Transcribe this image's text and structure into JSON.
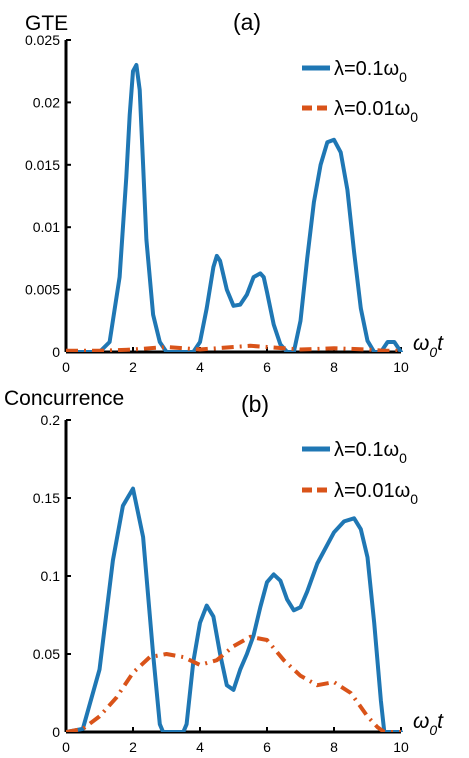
{
  "chart_data": [
    {
      "type": "line",
      "panel_label": "(a)",
      "ylabel": "GTE",
      "xlabel": "ω₀t",
      "xlim": [
        0,
        10
      ],
      "ylim": [
        0,
        0.025
      ],
      "xticks": [
        "0",
        "2",
        "4",
        "6",
        "8",
        "10"
      ],
      "yticks": [
        "0",
        "0.005",
        "0.01",
        "0.015",
        "0.02",
        "0.025"
      ],
      "legend_position": "top-right",
      "series": [
        {
          "name": "λ=0.1ω₀",
          "color": "#1f77b4",
          "style": "solid",
          "x": [
            0,
            1.0,
            1.3,
            1.6,
            1.8,
            1.9,
            2.0,
            2.1,
            2.2,
            2.3,
            2.4,
            2.6,
            2.8,
            3.0,
            3.5,
            3.8,
            4.0,
            4.2,
            4.4,
            4.5,
            4.6,
            4.8,
            5.0,
            5.2,
            5.4,
            5.6,
            5.8,
            5.9,
            6.0,
            6.2,
            6.4,
            6.6,
            6.8,
            7.0,
            7.2,
            7.4,
            7.6,
            7.8,
            8.0,
            8.2,
            8.4,
            8.6,
            8.8,
            9.0,
            9.2,
            9.4,
            9.6,
            9.8,
            10.0
          ],
          "y": [
            0,
            0,
            0.0008,
            0.006,
            0.014,
            0.019,
            0.0225,
            0.023,
            0.021,
            0.015,
            0.009,
            0.003,
            0.0008,
            0,
            0,
            0,
            0.0008,
            0.0035,
            0.0068,
            0.0077,
            0.0073,
            0.005,
            0.0037,
            0.0038,
            0.0046,
            0.006,
            0.0063,
            0.006,
            0.0048,
            0.0022,
            0.0006,
            0,
            0,
            0.0025,
            0.0075,
            0.012,
            0.015,
            0.0168,
            0.017,
            0.016,
            0.013,
            0.008,
            0.0035,
            0.0009,
            0,
            0,
            0.0008,
            0.0008,
            0
          ]
        },
        {
          "name": "λ=0.01ω₀",
          "color": "#d95319",
          "style": "dash-dot",
          "x": [
            0,
            1.0,
            2.0,
            3.0,
            4.0,
            5.0,
            5.5,
            6.0,
            7.0,
            8.0,
            9.0,
            9.5,
            10.0
          ],
          "y": [
            0.0001,
            0.0001,
            0.0002,
            0.0004,
            0.0002,
            0.0004,
            0.0005,
            0.0004,
            0.0002,
            0.0003,
            0.0002,
            0.0001,
            0.0001
          ]
        }
      ]
    },
    {
      "type": "line",
      "panel_label": "(b)",
      "ylabel": "Concurrence",
      "xlabel": "ω₀t",
      "xlim": [
        0,
        10
      ],
      "ylim": [
        0,
        0.2
      ],
      "xticks": [
        "0",
        "2",
        "4",
        "6",
        "8",
        "10"
      ],
      "yticks": [
        "0",
        "0.05",
        "0.1",
        "0.15",
        "0.2"
      ],
      "legend_position": "top-right",
      "series": [
        {
          "name": "λ=0.1ω₀",
          "color": "#1f77b4",
          "style": "solid",
          "x": [
            0,
            0.5,
            1.0,
            1.4,
            1.7,
            2.0,
            2.3,
            2.6,
            2.8,
            2.9,
            3.5,
            3.6,
            3.8,
            4.0,
            4.2,
            4.4,
            4.6,
            4.8,
            5.0,
            5.2,
            5.4,
            5.6,
            5.8,
            6.0,
            6.2,
            6.4,
            6.6,
            6.8,
            7.0,
            7.2,
            7.5,
            7.8,
            8.0,
            8.3,
            8.6,
            8.8,
            9.0,
            9.2,
            9.4,
            9.5,
            10.0
          ],
          "y": [
            0,
            0.002,
            0.04,
            0.11,
            0.145,
            0.156,
            0.125,
            0.05,
            0.005,
            0,
            0,
            0.005,
            0.045,
            0.07,
            0.081,
            0.074,
            0.05,
            0.03,
            0.027,
            0.04,
            0.05,
            0.062,
            0.08,
            0.096,
            0.101,
            0.097,
            0.085,
            0.078,
            0.08,
            0.09,
            0.108,
            0.12,
            0.128,
            0.135,
            0.137,
            0.13,
            0.112,
            0.07,
            0.02,
            0,
            0
          ]
        },
        {
          "name": "λ=0.01ω₀",
          "color": "#d95319",
          "style": "dash-dot",
          "x": [
            0,
            0.5,
            1.0,
            1.5,
            2.0,
            2.5,
            3.0,
            3.5,
            4.0,
            4.5,
            5.0,
            5.5,
            6.0,
            6.5,
            7.0,
            7.5,
            8.0,
            8.5,
            9.0,
            9.3,
            9.5,
            10.0
          ],
          "y": [
            0,
            0.002,
            0.01,
            0.022,
            0.038,
            0.048,
            0.05,
            0.048,
            0.043,
            0.046,
            0.055,
            0.061,
            0.059,
            0.046,
            0.036,
            0.03,
            0.032,
            0.025,
            0.01,
            0.003,
            0,
            0
          ]
        }
      ]
    }
  ]
}
